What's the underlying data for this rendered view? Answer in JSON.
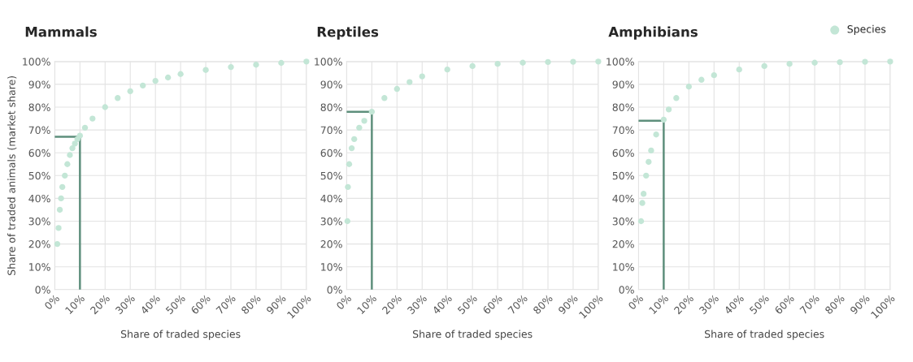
{
  "chart_data": [
    {
      "type": "scatter",
      "title": "Mammals",
      "xlabel": "Share of traded species",
      "ylabel": "Share of traded animals (market share)",
      "xlim": [
        0,
        100
      ],
      "ylim": [
        0,
        100
      ],
      "xticks": [
        {
          "value": 0,
          "label": "0%"
        },
        {
          "value": 10,
          "label": "10%"
        },
        {
          "value": 20,
          "label": "20%"
        },
        {
          "value": 30,
          "label": "30%"
        },
        {
          "value": 40,
          "label": "40%"
        },
        {
          "value": 50,
          "label": "50%"
        },
        {
          "value": 60,
          "label": "60%"
        },
        {
          "value": 70,
          "label": "70%"
        },
        {
          "value": 80,
          "label": "80%"
        },
        {
          "value": 90,
          "label": "90%"
        },
        {
          "value": 100,
          "label": "100%"
        }
      ],
      "yticks": [
        {
          "value": 0,
          "label": "0%"
        },
        {
          "value": 10,
          "label": "10%"
        },
        {
          "value": 20,
          "label": "20%"
        },
        {
          "value": 30,
          "label": "30%"
        },
        {
          "value": 40,
          "label": "40%"
        },
        {
          "value": 50,
          "label": "50%"
        },
        {
          "value": 60,
          "label": "60%"
        },
        {
          "value": 70,
          "label": "70%"
        },
        {
          "value": 80,
          "label": "80%"
        },
        {
          "value": 90,
          "label": "90%"
        },
        {
          "value": 100,
          "label": "100%"
        }
      ],
      "grid": true,
      "series": [
        {
          "marker": "circle",
          "color": "#c3e6d6",
          "x": [
            1,
            1.5,
            2,
            2.5,
            3,
            4,
            5,
            6,
            7,
            8,
            9,
            10,
            12,
            15,
            20,
            25,
            30,
            35,
            40,
            45,
            50,
            60,
            70,
            80,
            90,
            100
          ],
          "values": [
            20,
            27,
            35,
            40,
            45,
            50,
            55,
            59,
            62,
            64,
            66,
            67.5,
            71,
            75,
            80,
            84,
            87,
            89.5,
            91.5,
            93,
            94.5,
            96.3,
            97.6,
            98.6,
            99.4,
            100
          ]
        },
        {
          "type": "line",
          "color": "#5e8f7c",
          "x": [
            10,
            10,
            0
          ],
          "values": [
            0,
            67,
            67
          ]
        }
      ]
    },
    {
      "type": "scatter",
      "title": "Reptiles",
      "xlabel": "Share of traded species",
      "xlim": [
        0,
        100
      ],
      "ylim": [
        0,
        100
      ],
      "xticks": [
        {
          "value": 0,
          "label": "0%"
        },
        {
          "value": 10,
          "label": "10%"
        },
        {
          "value": 20,
          "label": "20%"
        },
        {
          "value": 30,
          "label": "30%"
        },
        {
          "value": 40,
          "label": "40%"
        },
        {
          "value": 50,
          "label": "50%"
        },
        {
          "value": 60,
          "label": "60%"
        },
        {
          "value": 70,
          "label": "70%"
        },
        {
          "value": 80,
          "label": "80%"
        },
        {
          "value": 90,
          "label": "90%"
        },
        {
          "value": 100,
          "label": "100%"
        }
      ],
      "yticks": [
        {
          "value": 0,
          "label": "0%"
        },
        {
          "value": 10,
          "label": "10%"
        },
        {
          "value": 20,
          "label": "20%"
        },
        {
          "value": 30,
          "label": "30%"
        },
        {
          "value": 40,
          "label": "40%"
        },
        {
          "value": 50,
          "label": "50%"
        },
        {
          "value": 60,
          "label": "60%"
        },
        {
          "value": 70,
          "label": "70%"
        },
        {
          "value": 80,
          "label": "80%"
        },
        {
          "value": 90,
          "label": "90%"
        },
        {
          "value": 100,
          "label": "100%"
        }
      ],
      "grid": true,
      "series": [
        {
          "marker": "circle",
          "color": "#c3e6d6",
          "x": [
            0.3,
            0.5,
            1,
            2,
            3,
            5,
            7,
            10,
            15,
            20,
            25,
            30,
            40,
            50,
            60,
            70,
            80,
            90,
            100
          ],
          "values": [
            30,
            45,
            55,
            62,
            66,
            71,
            74,
            78,
            84,
            88,
            91,
            93.5,
            96.5,
            98,
            99,
            99.5,
            99.8,
            99.9,
            100
          ]
        },
        {
          "type": "line",
          "color": "#5e8f7c",
          "x": [
            10,
            10,
            0
          ],
          "values": [
            0,
            78,
            78
          ]
        }
      ]
    },
    {
      "type": "scatter",
      "title": "Amphibians",
      "xlabel": "Share of traded species",
      "xlim": [
        0,
        100
      ],
      "ylim": [
        0,
        100
      ],
      "legend": "top right",
      "xticks": [
        {
          "value": 0,
          "label": "0%"
        },
        {
          "value": 10,
          "label": "10%"
        },
        {
          "value": 20,
          "label": "20%"
        },
        {
          "value": 30,
          "label": "30%"
        },
        {
          "value": 40,
          "label": "40%"
        },
        {
          "value": 50,
          "label": "50%"
        },
        {
          "value": 60,
          "label": "60%"
        },
        {
          "value": 70,
          "label": "70%"
        },
        {
          "value": 80,
          "label": "80%"
        },
        {
          "value": 90,
          "label": "90%"
        },
        {
          "value": 100,
          "label": "100%"
        }
      ],
      "yticks": [
        {
          "value": 0,
          "label": "0%"
        },
        {
          "value": 10,
          "label": "10%"
        },
        {
          "value": 20,
          "label": "20%"
        },
        {
          "value": 30,
          "label": "30%"
        },
        {
          "value": 40,
          "label": "40%"
        },
        {
          "value": 50,
          "label": "50%"
        },
        {
          "value": 60,
          "label": "60%"
        },
        {
          "value": 70,
          "label": "70%"
        },
        {
          "value": 80,
          "label": "80%"
        },
        {
          "value": 90,
          "label": "90%"
        },
        {
          "value": 100,
          "label": "100%"
        }
      ],
      "grid": true,
      "series": [
        {
          "marker": "circle",
          "name": "Species",
          "color": "#c3e6d6",
          "x": [
            1,
            1.5,
            2,
            3,
            4,
            5,
            7,
            10,
            12,
            15,
            20,
            25,
            30,
            40,
            50,
            60,
            70,
            80,
            90,
            100
          ],
          "values": [
            30,
            38,
            42,
            50,
            56,
            61,
            68,
            74.5,
            79,
            84,
            89,
            92,
            94,
            96.5,
            98,
            99,
            99.5,
            99.7,
            99.9,
            100
          ]
        },
        {
          "type": "line",
          "color": "#5e8f7c",
          "x": [
            10,
            10,
            0
          ],
          "values": [
            0,
            74,
            74
          ]
        }
      ]
    }
  ]
}
